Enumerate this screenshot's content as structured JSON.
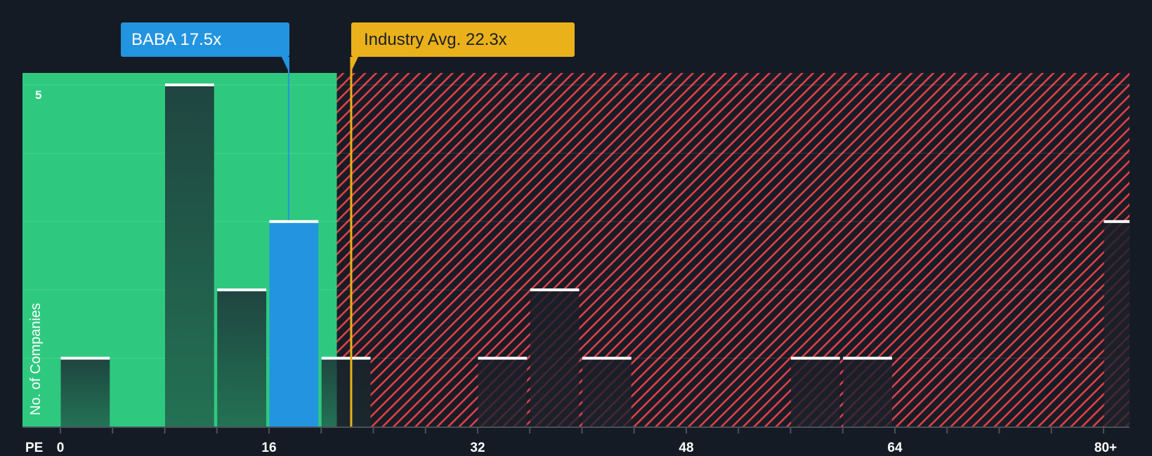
{
  "chart_data": {
    "type": "bar",
    "title": "",
    "xlabel": "PE",
    "ylabel": "No. of Companies",
    "x_tick_labels": [
      "0",
      "16",
      "32",
      "48",
      "64",
      "80+"
    ],
    "x_ticks": [
      0,
      16,
      32,
      48,
      64,
      80
    ],
    "y_tick_labels": [
      "5"
    ],
    "ylim": [
      0,
      5
    ],
    "xlim": [
      -3,
      82
    ],
    "bin_width": 4,
    "categories": [
      "0-4",
      "8-12",
      "12-16",
      "16-20",
      "20-24",
      "32-36",
      "36-40",
      "40-44",
      "56-60",
      "60-64",
      "80+"
    ],
    "bins_start": [
      0,
      8,
      12,
      16,
      20,
      32,
      36,
      40,
      56,
      60,
      80
    ],
    "values": [
      1,
      5,
      2,
      3,
      1,
      1,
      2,
      1,
      1,
      1,
      3
    ],
    "highlight": {
      "company": "BABA",
      "value": 17.5,
      "label": "BABA 17.5x",
      "bin_start": 16,
      "color": "#2394df"
    },
    "industry_average": {
      "value": 22.3,
      "label": "Industry Avg. 22.3x",
      "color": "#ebb11a"
    },
    "regions": [
      {
        "name": "undervalued",
        "from": -3,
        "to": 21.2,
        "color": "#2ec97f"
      },
      {
        "name": "overvalued",
        "from": 21.2,
        "to": 82,
        "color": "#e0404a",
        "pattern": "diagonal-hatch"
      }
    ],
    "grid": true,
    "legend": null
  },
  "labels": {
    "baba_callout": "BABA 17.5x",
    "industry_callout": "Industry Avg. 22.3x",
    "y_axis": "No. of Companies",
    "x_axis": "PE",
    "y_max": "5",
    "x_ticks": [
      "0",
      "16",
      "32",
      "48",
      "64",
      "80+"
    ]
  },
  "colors": {
    "background": "#151b24",
    "green_zone": "#2ec97f",
    "red_hatch": "#e0404a",
    "baba_blue": "#2394df",
    "industry_gold": "#ebb11a",
    "bar_dark": "#1f4a3f"
  }
}
